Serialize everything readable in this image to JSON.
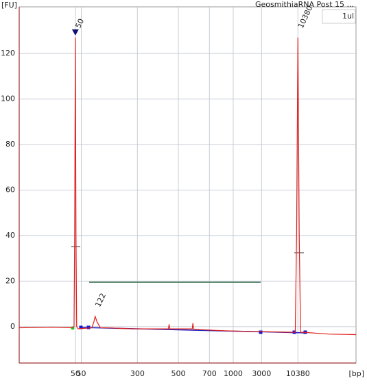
{
  "chart_data": {
    "type": "line",
    "title": "GeosmithiaRNA Post 15 ...",
    "y_label": "[FU]",
    "x_label": "[bp]",
    "legend": "1ul",
    "x": [
      19,
      24,
      27,
      27.3,
      27.4,
      27.5,
      27.6,
      27.7,
      27.9,
      30,
      30.3,
      30.5,
      30.8,
      31.3,
      33,
      36,
      41.6,
      41.7,
      41.8,
      45.2,
      45.3,
      45.4,
      50,
      55,
      60.8,
      61.0,
      61.2,
      61.4,
      61.6,
      62,
      66,
      70
    ],
    "series": [
      {
        "name": "1ul",
        "color": "#e0201c",
        "values": [
          -0.5,
          -0.3,
          -0.5,
          0,
          40,
          127,
          40,
          0,
          -1,
          -0.5,
          2,
          4.5,
          2,
          -0.5,
          -0.6,
          -1,
          -1,
          1,
          -1,
          -1,
          1.5,
          -1.2,
          -1.8,
          -2.2,
          -2.5,
          40,
          127,
          40,
          -2.5,
          -2.5,
          -3.3,
          -3.5
        ]
      }
    ],
    "peak_labels": [
      {
        "text": "50",
        "x": 27.5,
        "y": 127,
        "color": "#0a6a0a"
      },
      {
        "text": "122",
        "x": 30.5,
        "y": 4.5,
        "color": "#111111"
      },
      {
        "text": "10380",
        "x": 61.2,
        "y": 127,
        "color": "#8a2be2"
      }
    ],
    "xlim": [
      19,
      70
    ],
    "ylim": [
      -16,
      140.5
    ],
    "xticks": [
      {
        "value": 27.5,
        "label": "50"
      },
      {
        "value": 28.4,
        "label": "50"
      },
      {
        "value": 36.9,
        "label": "300"
      },
      {
        "value": 43.1,
        "label": "500"
      },
      {
        "value": 47.8,
        "label": "700"
      },
      {
        "value": 51.4,
        "label": "1000"
      },
      {
        "value": 55.7,
        "label": "3000"
      },
      {
        "value": 61.2,
        "label": "10380"
      }
    ],
    "yticks": [
      0,
      20,
      40,
      60,
      80,
      100,
      120
    ],
    "grid": true
  }
}
